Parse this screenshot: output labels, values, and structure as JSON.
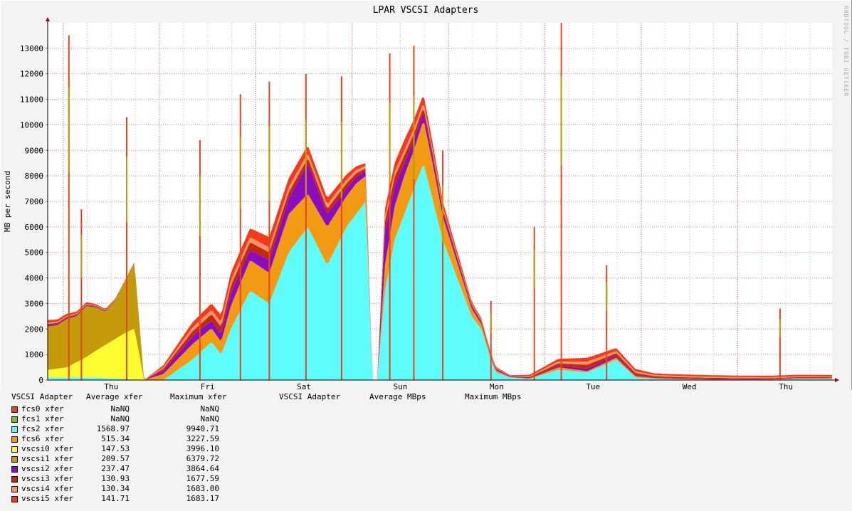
{
  "watermark": "RRDTOOL / TOBI OETIKER",
  "legend": {
    "header_col1": "VSCSI Adapter",
    "header_col2": "Average xfer",
    "header_col3": "Maximum xfer",
    "header_col4": "VSCSI Adapter",
    "header_col5": "Average MBps",
    "header_col6": "Maximum MBps",
    "rows": [
      {
        "name": "fcs0 xfer",
        "avg": "NaNQ",
        "max": "NaNQ",
        "color": "#e84418"
      },
      {
        "name": "fcs1 xfer",
        "avg": "NaNQ",
        "max": "NaNQ",
        "color": "#7cc218"
      },
      {
        "name": "fcs2 xfer",
        "avg": "1568.97",
        "max": "9940.71",
        "color": "#5ffcfc"
      },
      {
        "name": "fcs6 xfer",
        "avg": "515.34",
        "max": "3227.59",
        "color": "#f39a14"
      },
      {
        "name": "vscsi0 xfer",
        "avg": "147.53",
        "max": "3996.10",
        "color": "#fcfc30"
      },
      {
        "name": "vscsi1 xfer",
        "avg": "209.57",
        "max": "6379.72",
        "color": "#c49a0a"
      },
      {
        "name": "vscsi2 xfer",
        "avg": "237.47",
        "max": "3864.64",
        "color": "#8a0ec0"
      },
      {
        "name": "vscsi3 xfer",
        "avg": "130.93",
        "max": "1677.59",
        "color": "#c42a08"
      },
      {
        "name": "vscsi4 xfer",
        "avg": "130.34",
        "max": "1683.00",
        "color": "#f5946a"
      },
      {
        "name": "vscsi5 xfer",
        "avg": "141.71",
        "max": "1683.17",
        "color": "#f53a1a"
      }
    ]
  },
  "chart_data": {
    "type": "area",
    "stacked": true,
    "title": "LPAR VSCSI Adapters",
    "xlabel": "",
    "ylabel": "MB per second",
    "ylim": [
      0,
      14000
    ],
    "y_ticks": [
      0,
      1000,
      2000,
      3000,
      4000,
      5000,
      6000,
      7000,
      8000,
      9000,
      10000,
      11000,
      12000,
      13000
    ],
    "x_ticks": [
      "Thu",
      "Fri",
      "Sat",
      "Sun",
      "Mon",
      "Tue",
      "Wed",
      "Thu"
    ],
    "xlim": [
      0,
      8.14
    ],
    "x_tick_values": [
      0.66,
      1.66,
      2.66,
      3.66,
      4.66,
      5.66,
      6.66,
      7.66
    ],
    "grid": true,
    "legend_position": "bottom",
    "x_units": "days since first tick day start",
    "series": [
      {
        "name": "fcs2 xfer",
        "color": "#5ffcfc",
        "x": [
          0,
          0.5,
          1.0,
          1.2,
          1.5,
          1.7,
          1.8,
          1.9,
          2.1,
          2.3,
          2.5,
          2.6,
          2.7,
          2.9,
          3.1,
          3.2,
          3.3,
          3.37,
          3.42,
          3.5,
          3.6,
          3.7,
          3.8,
          3.9,
          4.0,
          4.1,
          4.15,
          4.25,
          4.4,
          4.5,
          4.6,
          4.65,
          4.8,
          5.0,
          5.3,
          5.6,
          5.9,
          6.1,
          6.3,
          6.5,
          6.7,
          6.9,
          7.2,
          7.5,
          7.8,
          8.1
        ],
        "y": [
          100,
          100,
          0,
          0,
          800,
          1500,
          1000,
          2000,
          3500,
          3000,
          5000,
          5500,
          6000,
          4500,
          6000,
          6500,
          7000,
          0,
          0,
          3500,
          5500,
          6500,
          7500,
          8500,
          7000,
          5500,
          5000,
          4000,
          2500,
          2000,
          800,
          300,
          100,
          50,
          400,
          300,
          800,
          100,
          50,
          30,
          20,
          10,
          10,
          10,
          50,
          50
        ]
      },
      {
        "name": "fcs6 xfer",
        "color": "#f39a14",
        "x": [
          0,
          1.0,
          1.5,
          1.8,
          1.9,
          2.1,
          2.3,
          2.5,
          2.7,
          2.9,
          3.1,
          3.2,
          3.3,
          3.37,
          3.42,
          3.5,
          3.6,
          3.7,
          3.8,
          3.9,
          4.0,
          4.1,
          4.25,
          4.4,
          4.6,
          4.8,
          5.0,
          5.3,
          5.6,
          5.9,
          6.3,
          6.7,
          7.2,
          7.8,
          8.1
        ],
        "y": [
          0,
          0,
          600,
          500,
          900,
          1200,
          1200,
          1500,
          1300,
          1500,
          1200,
          1200,
          1000,
          0,
          0,
          1000,
          1300,
          1500,
          1500,
          1700,
          1400,
          900,
          600,
          300,
          100,
          20,
          10,
          100,
          50,
          80,
          30,
          20,
          10,
          20,
          20
        ]
      },
      {
        "name": "vscsi0 xfer",
        "color": "#fcfc30",
        "x": [
          0,
          0.2,
          0.4,
          0.6,
          0.8,
          0.9,
          1.0,
          8.1
        ],
        "y": [
          300,
          400,
          800,
          1300,
          1800,
          2000,
          0,
          0
        ]
      },
      {
        "name": "vscsi1 xfer",
        "color": "#c49a0a",
        "x": [
          0,
          0.1,
          0.2,
          0.3,
          0.4,
          0.5,
          0.6,
          0.7,
          0.8,
          0.9,
          1.0,
          8.1
        ],
        "y": [
          1700,
          1700,
          1900,
          1800,
          2000,
          1700,
          1300,
          1500,
          2000,
          2600,
          0,
          0
        ]
      },
      {
        "name": "vscsi2 xfer",
        "color": "#8a0ec0",
        "x": [
          0,
          1.0,
          1.5,
          1.8,
          1.9,
          2.1,
          2.3,
          2.5,
          2.7,
          2.9,
          3.1,
          3.3,
          3.37,
          3.42,
          3.5,
          3.6,
          3.7,
          3.9,
          4.1,
          4.4,
          4.6,
          5.0,
          5.6,
          6.3,
          8.1
        ],
        "y": [
          50,
          0,
          300,
          300,
          500,
          400,
          500,
          600,
          1200,
          500,
          300,
          200,
          0,
          0,
          1300,
          800,
          500,
          300,
          200,
          100,
          50,
          10,
          100,
          20,
          10
        ]
      },
      {
        "name": "vscsi3 xfer",
        "color": "#c42a08",
        "x": [
          0,
          1.0,
          1.5,
          1.9,
          2.3,
          2.7,
          3.1,
          3.3,
          3.37,
          3.42,
          3.5,
          3.7,
          3.9,
          4.1,
          4.4,
          4.8,
          5.6,
          6.3,
          8.1
        ],
        "y": [
          50,
          0,
          200,
          300,
          300,
          200,
          200,
          100,
          0,
          0,
          400,
          300,
          200,
          100,
          50,
          10,
          150,
          50,
          30
        ]
      },
      {
        "name": "vscsi4 xfer",
        "color": "#f5946a",
        "x": [
          0,
          1.0,
          1.5,
          1.9,
          2.3,
          2.7,
          3.1,
          3.3,
          3.37,
          3.42,
          3.5,
          3.7,
          3.9,
          4.1,
          4.4,
          4.8,
          5.6,
          6.3,
          8.1
        ],
        "y": [
          50,
          0,
          150,
          200,
          200,
          200,
          150,
          100,
          0,
          0,
          200,
          200,
          200,
          100,
          50,
          10,
          120,
          50,
          30
        ]
      },
      {
        "name": "vscsi5 xfer",
        "color": "#f53a1a",
        "x": [
          0,
          1.0,
          1.5,
          1.9,
          2.3,
          2.7,
          3.1,
          3.3,
          3.37,
          3.42,
          3.5,
          3.7,
          3.9,
          4.1,
          4.4,
          4.8,
          5.6,
          6.3,
          8.1
        ],
        "y": [
          100,
          0,
          200,
          300,
          400,
          300,
          200,
          100,
          0,
          0,
          300,
          400,
          300,
          200,
          80,
          20,
          150,
          60,
          60
        ]
      }
    ],
    "spikes": [
      {
        "x": 0.22,
        "y": 13500
      },
      {
        "x": 0.35,
        "y": 6700
      },
      {
        "x": 0.82,
        "y": 10300
      },
      {
        "x": 1.58,
        "y": 9400
      },
      {
        "x": 2.0,
        "y": 11200
      },
      {
        "x": 2.3,
        "y": 11700
      },
      {
        "x": 2.68,
        "y": 12000
      },
      {
        "x": 3.05,
        "y": 11900
      },
      {
        "x": 3.55,
        "y": 12800
      },
      {
        "x": 3.8,
        "y": 13100
      },
      {
        "x": 4.1,
        "y": 9000
      },
      {
        "x": 4.6,
        "y": 3100
      },
      {
        "x": 5.05,
        "y": 6000
      },
      {
        "x": 5.33,
        "y": 14000
      },
      {
        "x": 5.8,
        "y": 4500
      },
      {
        "x": 7.6,
        "y": 2800
      }
    ]
  }
}
